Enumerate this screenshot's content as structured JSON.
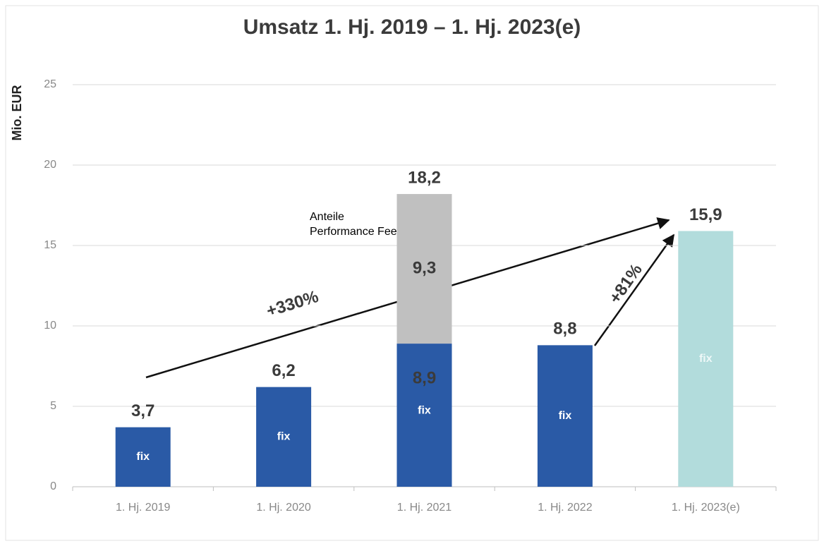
{
  "chart_data": {
    "type": "stacked_bar",
    "title": "Umsatz 1. Hj. 2019 – 1. Hj. 2023(e)",
    "y_label": "Mio. EUR",
    "categories": [
      "1. Hj. 2019",
      "1. Hj. 2020",
      "1. Hj. 2021",
      "1. Hj. 2022",
      "1. Hj. 2023(e)"
    ],
    "series": [
      {
        "name": "fix",
        "colors": [
          "#2a5aa6",
          "#2a5aa6",
          "#2a5aa6",
          "#2a5aa6",
          "#b2dcdc"
        ],
        "values": [
          3.7,
          6.2,
          8.9,
          8.8,
          15.9
        ],
        "value_labels": [
          null,
          null,
          "8,9",
          null,
          null
        ]
      },
      {
        "name": "Anteile Performance Fee",
        "color": "#c0c0c0",
        "values": [
          null,
          null,
          9.3,
          null,
          null
        ],
        "value_labels": [
          null,
          null,
          "9,3",
          null,
          null
        ]
      }
    ],
    "totals": {
      "values": [
        3.7,
        6.2,
        18.2,
        8.8,
        15.9
      ],
      "value_labels": [
        "3,7",
        "6,2",
        "18,2",
        "8,8",
        "15,9"
      ]
    },
    "annotations": [
      "+330%",
      "+81%"
    ],
    "ylim": [
      0,
      25
    ],
    "yticks": [
      0,
      5,
      10,
      15,
      20,
      25
    ],
    "grid": true
  }
}
